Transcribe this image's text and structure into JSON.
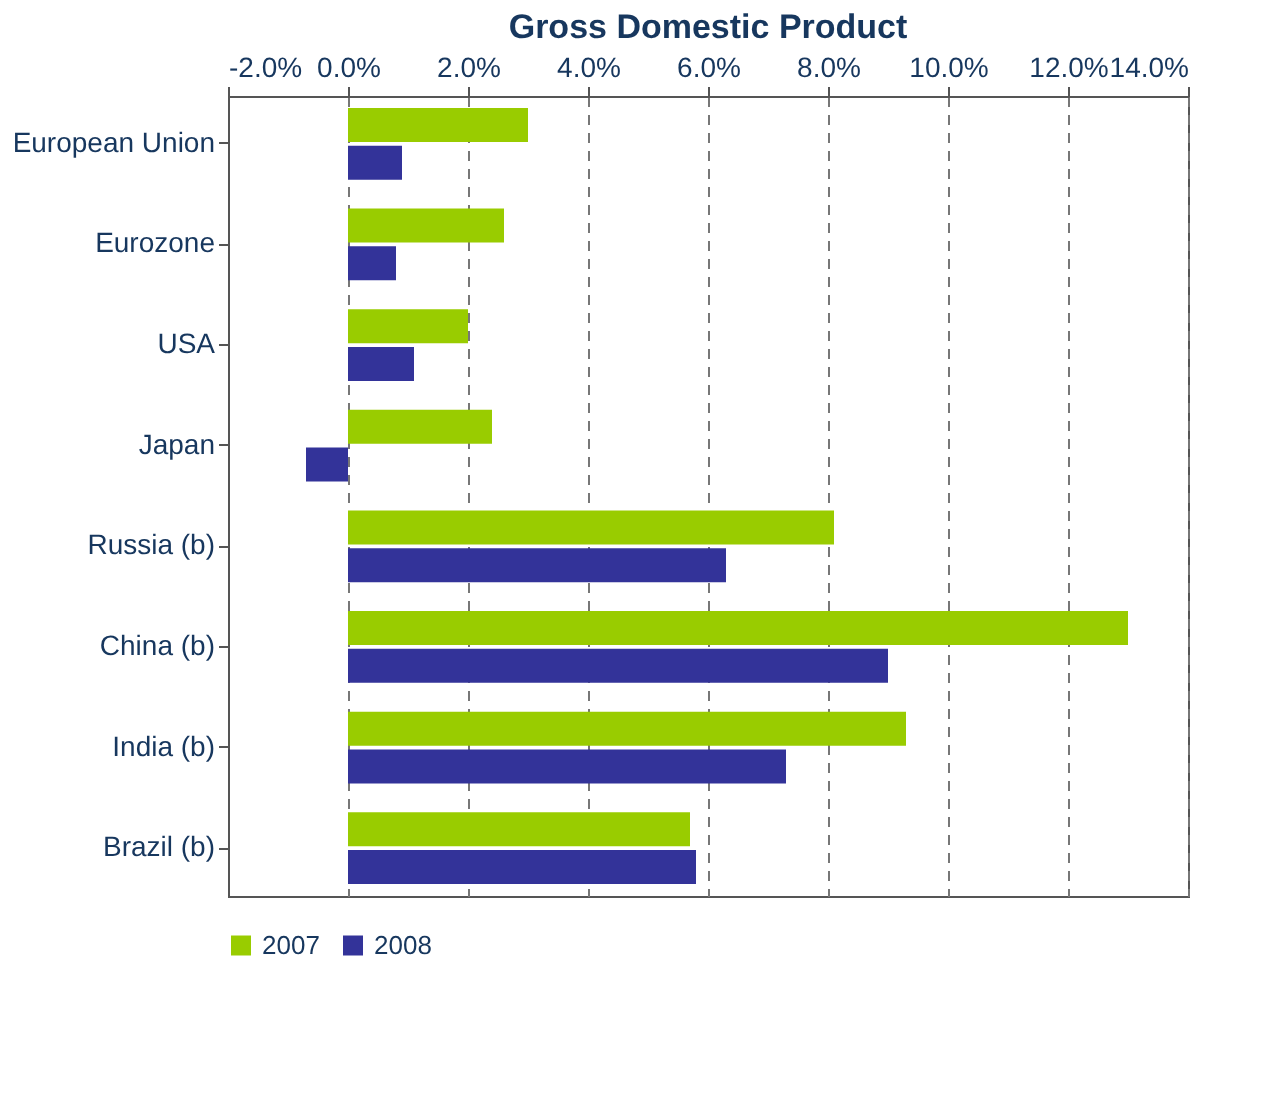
{
  "chart_data": {
    "type": "bar",
    "orientation": "horizontal",
    "title": "Gross Domestic Product",
    "categories": [
      "European Union",
      "Eurozone",
      "USA",
      "Japan",
      "Russia (b)",
      "China (b)",
      "India (b)",
      "Brazil (b)"
    ],
    "series": [
      {
        "name": "2007",
        "color": "#99cc00",
        "values": [
          3.0,
          2.6,
          2.0,
          2.4,
          8.1,
          13.0,
          9.3,
          5.7
        ]
      },
      {
        "name": "2008",
        "color": "#333399",
        "values": [
          0.9,
          0.8,
          1.1,
          -0.7,
          6.3,
          9.0,
          7.3,
          5.8
        ]
      }
    ],
    "xlim": [
      -2,
      14
    ],
    "xticks": [
      {
        "value": -2,
        "label": "-2.0%"
      },
      {
        "value": 0,
        "label": "0.0%"
      },
      {
        "value": 2,
        "label": "2.0%"
      },
      {
        "value": 4,
        "label": "4.0%"
      },
      {
        "value": 6,
        "label": "6.0%"
      },
      {
        "value": 8,
        "label": "8.0%"
      },
      {
        "value": 10,
        "label": "10.0%"
      },
      {
        "value": 12,
        "label": "12.0%"
      },
      {
        "value": 14,
        "label": "14.0%"
      }
    ],
    "grid": "x",
    "legend": "bottom"
  }
}
